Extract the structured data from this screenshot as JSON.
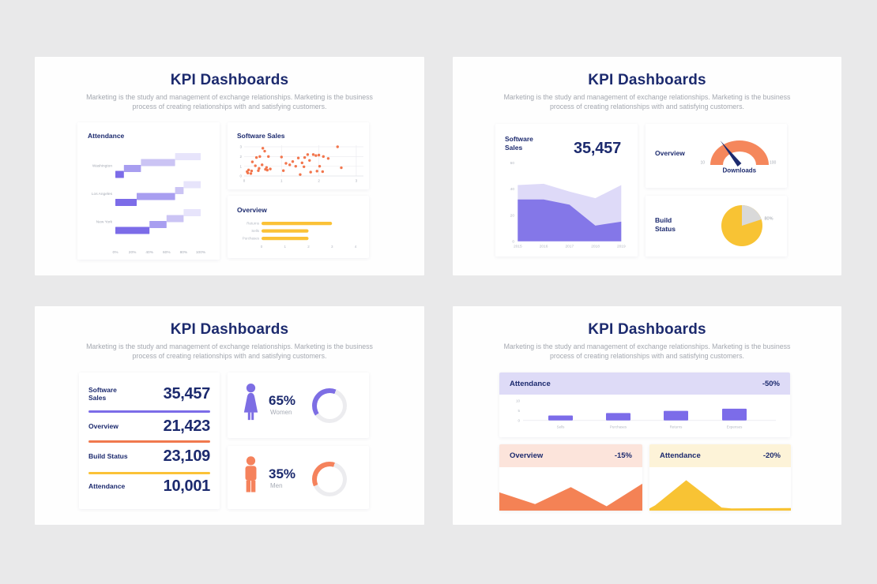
{
  "slides": {
    "slide1": {
      "title": "KPI Dashboards",
      "subtitle": "Marketing is the study and management of exchange relationships. Marketing is the business process of creating relationships with and satisfying customers.",
      "panels": {
        "attendance_title": "Attendance",
        "scatter_title": "Software Sales",
        "overview_title": "Overview"
      }
    },
    "slide2": {
      "title": "KPI Dashboards",
      "subtitle": "Marketing is the study and management of exchange relationships. Marketing is the business process of creating relationships with and satisfying customers.",
      "panels": {
        "sales_title": "Software Sales",
        "sales_big_value": "35,457",
        "gauge_title": "Overview",
        "pie_title": "Build Status"
      }
    },
    "slide3": {
      "title": "KPI Dashboards",
      "subtitle": "Marketing is the study and management of exchange relationships. Marketing is the business process of creating relationships with and satisfying customers.",
      "kpis": [
        {
          "label": "Software Sales",
          "value": "35,457",
          "rule_color": "#7c6ce8"
        },
        {
          "label": "Overview",
          "value": "21,423",
          "rule_color": "#f0794e"
        },
        {
          "label": "Build Status",
          "value": "23,109",
          "rule_color": "#fbc237"
        },
        {
          "label": "Attendance",
          "value": "10,001",
          "rule_color": null
        }
      ],
      "genders": [
        {
          "percent": "65%",
          "label": "Women",
          "color": "#7d6ee4",
          "arc_from": 235,
          "arc_pct": 41
        },
        {
          "percent": "35%",
          "label": "Men",
          "color": "#f5825c",
          "arc_from": 245,
          "arc_pct": 37
        }
      ]
    },
    "slide4": {
      "title": "KPI Dashboards",
      "subtitle": "Marketing is the study and management of exchange relationships. Marketing is the business process of creating relationships with and satisfying customers.",
      "panels": {
        "bars_title": "Attendance",
        "bars_badge": "-50%",
        "bars_header_bg": "#dedbf7",
        "area1_title": "Overview",
        "area1_badge": "-15%",
        "area1_header_bg": "#fce4db",
        "area2_title": "Attendance",
        "area2_badge": "-20%",
        "area2_header_bg": "#fdf3d8"
      }
    }
  },
  "colors": {
    "navy": "#1c2a6e",
    "page_bg": "#e9e9ea",
    "gray_text": "#a6abb5"
  },
  "chart_data": [
    {
      "name": "attendance_waterfall",
      "type": "bar",
      "orientation": "horizontal",
      "title": "Attendance",
      "rows": [
        {
          "label": "Washington",
          "segments": [
            [
              0,
              10
            ],
            [
              10,
              30
            ],
            [
              30,
              70
            ],
            [
              70,
              100
            ]
          ]
        },
        {
          "label": "Los Angeles",
          "segments": [
            [
              0,
              25
            ],
            [
              25,
              70
            ],
            [
              70,
              80
            ],
            [
              80,
              100
            ]
          ]
        },
        {
          "label": "New York",
          "segments": [
            [
              0,
              40
            ],
            [
              40,
              60
            ],
            [
              60,
              80
            ],
            [
              80,
              100
            ]
          ]
        }
      ],
      "xticks": [
        "0%",
        "20%",
        "40%",
        "60%",
        "80%",
        "100%"
      ],
      "colors": [
        "#7c6ce8",
        "#a89ef0",
        "#cbc4f4",
        "#e7e4fb"
      ]
    },
    {
      "name": "software_sales_scatter",
      "type": "scatter",
      "title": "Software Sales",
      "xlim": [
        0,
        3
      ],
      "ylim": [
        0,
        3
      ],
      "xticks": [
        0,
        1,
        2,
        3
      ],
      "yticks": [
        0,
        1,
        2,
        3
      ],
      "color": "#f2764d",
      "points": [
        [
          0.08,
          0.45
        ],
        [
          0.1,
          0.3
        ],
        [
          0.12,
          0.62
        ],
        [
          0.18,
          0.25
        ],
        [
          0.2,
          0.52
        ],
        [
          0.22,
          1.45
        ],
        [
          0.3,
          1.05
        ],
        [
          0.33,
          1.9
        ],
        [
          0.38,
          0.55
        ],
        [
          0.4,
          0.78
        ],
        [
          0.42,
          2.0
        ],
        [
          0.48,
          1.15
        ],
        [
          0.5,
          2.85
        ],
        [
          0.55,
          2.55
        ],
        [
          0.57,
          0.68
        ],
        [
          0.6,
          0.88
        ],
        [
          0.62,
          0.6
        ],
        [
          0.65,
          2.0
        ],
        [
          0.7,
          0.72
        ],
        [
          1.0,
          1.95
        ],
        [
          1.05,
          0.55
        ],
        [
          1.12,
          1.3
        ],
        [
          1.22,
          1.15
        ],
        [
          1.3,
          1.48
        ],
        [
          1.38,
          1.0
        ],
        [
          1.45,
          1.85
        ],
        [
          1.5,
          0.15
        ],
        [
          1.55,
          1.35
        ],
        [
          1.6,
          0.95
        ],
        [
          1.62,
          1.9
        ],
        [
          1.7,
          2.2
        ],
        [
          1.75,
          1.6
        ],
        [
          1.78,
          0.4
        ],
        [
          1.85,
          2.2
        ],
        [
          1.92,
          2.1
        ],
        [
          1.95,
          0.5
        ],
        [
          2.0,
          2.15
        ],
        [
          2.02,
          1.0
        ],
        [
          2.1,
          0.45
        ],
        [
          2.12,
          2.0
        ],
        [
          2.25,
          1.8
        ],
        [
          2.5,
          3.0
        ],
        [
          2.6,
          0.85
        ]
      ]
    },
    {
      "name": "overview_hbar",
      "type": "bar",
      "orientation": "horizontal",
      "title": "Overview",
      "categories": [
        "Returns",
        "Sells",
        "Purchases"
      ],
      "values": [
        3,
        2,
        2
      ],
      "xticks": [
        0,
        1,
        2,
        3,
        4
      ],
      "color": "#fbc237"
    },
    {
      "name": "software_sales_area",
      "type": "area",
      "title": "Software Sales",
      "big_value": "35,457",
      "x": [
        2015,
        2016,
        2017,
        2018,
        2019
      ],
      "series": [
        {
          "name": "upper",
          "values": [
            43,
            44,
            38,
            33,
            43
          ],
          "color": "#dedaf8"
        },
        {
          "name": "lower",
          "values": [
            32,
            32,
            28,
            12,
            15
          ],
          "color": "#8477e8"
        }
      ],
      "yticks": [
        0,
        20,
        40,
        60
      ],
      "ylim": [
        0,
        60
      ]
    },
    {
      "name": "downloads_gauge",
      "type": "gauge",
      "title": "Overview",
      "label": "Downloads",
      "min": "10",
      "max": "100",
      "color": "#f5875c"
    },
    {
      "name": "build_status_pie",
      "type": "pie",
      "title": "Build Status",
      "label": "80%",
      "value": 80,
      "color": "#f8c334",
      "rest_color": "#d9d9d9"
    },
    {
      "name": "attendance_bars",
      "type": "bar",
      "title": "Attendance",
      "badge": "-50%",
      "categories": [
        "Sells",
        "Purchases",
        "Returns",
        "Expenses"
      ],
      "values": [
        2.5,
        3.8,
        4.9,
        6
      ],
      "yticks": [
        0,
        5,
        10
      ],
      "ylim": [
        0,
        10
      ],
      "color": "#7c6ce9"
    },
    {
      "name": "overview_area",
      "type": "area",
      "title": "Overview",
      "badge": "-15%",
      "color": "#f48255",
      "points": [
        [
          0,
          58
        ],
        [
          25,
          85
        ],
        [
          50,
          46
        ],
        [
          75,
          90
        ],
        [
          100,
          38
        ]
      ]
    },
    {
      "name": "attendance_area",
      "type": "area",
      "title": "Attendance",
      "badge": "-20%",
      "color": "#f8c334",
      "points": [
        [
          0,
          95
        ],
        [
          4,
          88
        ],
        [
          26,
          30
        ],
        [
          51,
          93
        ],
        [
          58,
          95
        ],
        [
          100,
          94
        ]
      ]
    }
  ]
}
